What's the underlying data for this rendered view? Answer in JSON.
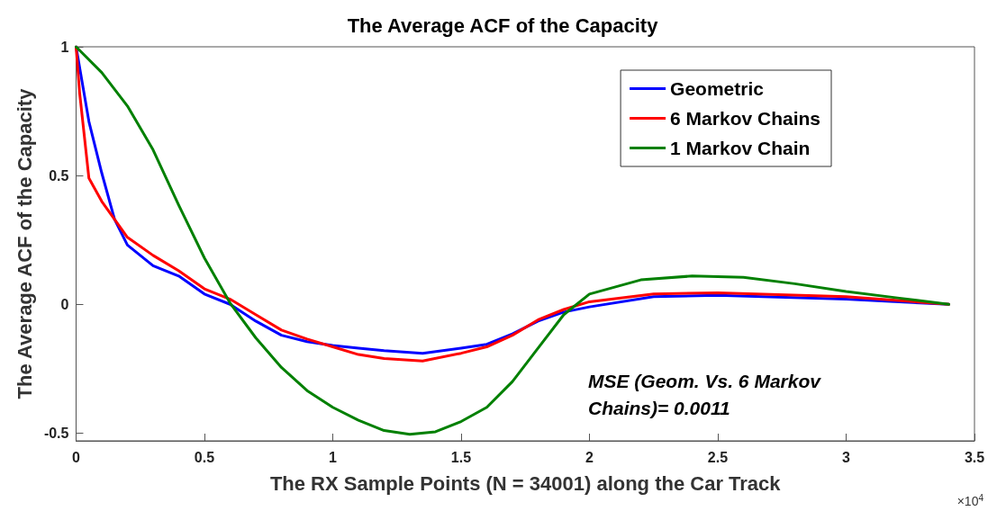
{
  "chart_data": {
    "type": "line",
    "title": "The Average ACF of the Capacity",
    "xlabel": "The RX Sample Points (N = 34001) along the Car Track",
    "ylabel": "The Average ACF of the Capacity",
    "annotations": [
      "×10$^{4}$",
      "MSE (Geom. Vs. 6 Markov Chains)= 0.0011"
    ],
    "xlim": [
      0,
      3.5
    ],
    "xticks": [
      0,
      0.5,
      1,
      1.5,
      2,
      2.5,
      3,
      3.5
    ],
    "ylim": [
      -0.53,
      1
    ],
    "yticks": [
      -0.5,
      0,
      0.5,
      1
    ],
    "grid": false,
    "legend": "top right",
    "marker": "none",
    "line_style": "solid",
    "series": [
      {
        "name": "Geometric",
        "color": "#0000ff",
        "x": [
          0,
          0.05,
          0.1,
          0.15,
          0.2,
          0.3,
          0.4,
          0.5,
          0.6,
          0.7,
          0.8,
          0.9,
          1.0,
          1.1,
          1.2,
          1.35,
          1.5,
          1.6,
          1.7,
          1.8,
          1.9,
          2.0,
          2.25,
          2.5,
          3.0,
          3.4
        ],
        "values": [
          1,
          0.71,
          0.51,
          0.33,
          0.23,
          0.15,
          0.11,
          0.04,
          0.0,
          -0.065,
          -0.12,
          -0.145,
          -0.16,
          -0.17,
          -0.18,
          -0.19,
          -0.17,
          -0.155,
          -0.115,
          -0.065,
          -0.03,
          -0.01,
          0.03,
          0.035,
          0.02,
          0
        ]
      },
      {
        "name": "6 Markov Chains",
        "color": "#ff0000",
        "x": [
          0,
          0.014,
          0.05,
          0.1,
          0.15,
          0.2,
          0.3,
          0.4,
          0.5,
          0.6,
          0.7,
          0.8,
          0.9,
          1.0,
          1.1,
          1.2,
          1.35,
          1.5,
          1.6,
          1.7,
          1.8,
          1.9,
          2.0,
          2.25,
          2.5,
          3.0,
          3.4
        ],
        "values": [
          1,
          0.82,
          0.49,
          0.4,
          0.33,
          0.26,
          0.19,
          0.13,
          0.06,
          0.02,
          -0.04,
          -0.1,
          -0.135,
          -0.165,
          -0.195,
          -0.21,
          -0.22,
          -0.19,
          -0.165,
          -0.12,
          -0.06,
          -0.02,
          0.01,
          0.04,
          0.045,
          0.03,
          0
        ]
      },
      {
        "name": "1 Markov Chain",
        "color": "#008000",
        "x": [
          0,
          0.1,
          0.2,
          0.3,
          0.4,
          0.5,
          0.6,
          0.7,
          0.8,
          0.9,
          1.0,
          1.1,
          1.2,
          1.3,
          1.4,
          1.5,
          1.6,
          1.7,
          1.8,
          1.9,
          2.0,
          2.2,
          2.4,
          2.6,
          2.8,
          3.0,
          3.2,
          3.4
        ],
        "values": [
          1,
          0.9,
          0.77,
          0.6,
          0.385,
          0.18,
          0.005,
          -0.13,
          -0.245,
          -0.335,
          -0.4,
          -0.45,
          -0.49,
          -0.505,
          -0.495,
          -0.455,
          -0.4,
          -0.3,
          -0.17,
          -0.04,
          0.04,
          0.095,
          0.11,
          0.105,
          0.08,
          0.05,
          0.025,
          0
        ]
      }
    ]
  }
}
